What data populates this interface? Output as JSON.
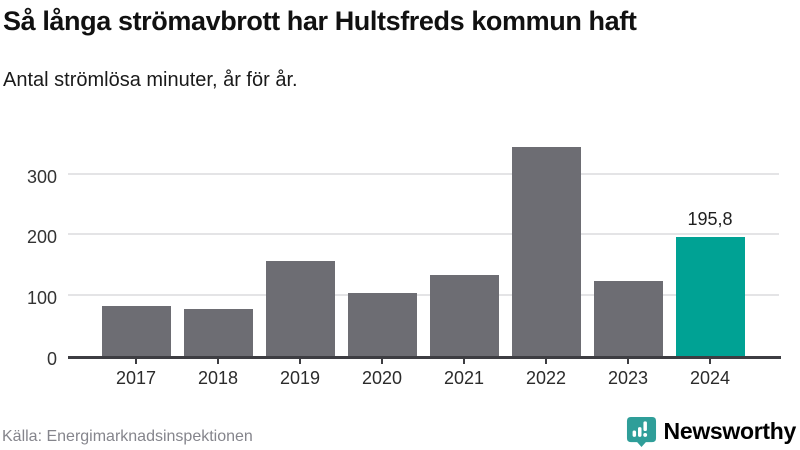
{
  "header": {
    "title": "Så långa strömavbrott har Hultsfreds kommun haft",
    "subtitle": "Antal strömlösa minuter, år för år."
  },
  "chart_data": {
    "type": "bar",
    "title": "Så långa strömavbrott har Hultsfreds kommun haft",
    "subtitle": "Antal strömlösa minuter, år för år.",
    "categories": [
      "2017",
      "2018",
      "2019",
      "2020",
      "2021",
      "2022",
      "2023",
      "2024"
    ],
    "values": [
      83,
      78,
      157,
      103,
      133,
      343,
      123,
      195.8
    ],
    "highlight_category": "2024",
    "value_label": {
      "category": "2024",
      "text": "195,8"
    },
    "yticks": [
      0,
      100,
      200,
      300
    ],
    "ytick_labels": [
      "0",
      "100",
      "200",
      "300"
    ],
    "ylim": [
      0,
      352
    ],
    "xlabel": "",
    "ylabel": "",
    "grid": "horizontal",
    "legend": "none"
  },
  "colors": {
    "bar_default": "#6d6d73",
    "bar_highlight": "#00a294",
    "gridline": "#e4e4e6",
    "axis": "#3d3d42",
    "brand_teal": "#2f9e99"
  },
  "footer": {
    "source": "Källa: Energimarknadsinspektionen",
    "brand": {
      "name": "Newsworthy",
      "logo_icon": "bar-chart-speech-bubble"
    }
  }
}
